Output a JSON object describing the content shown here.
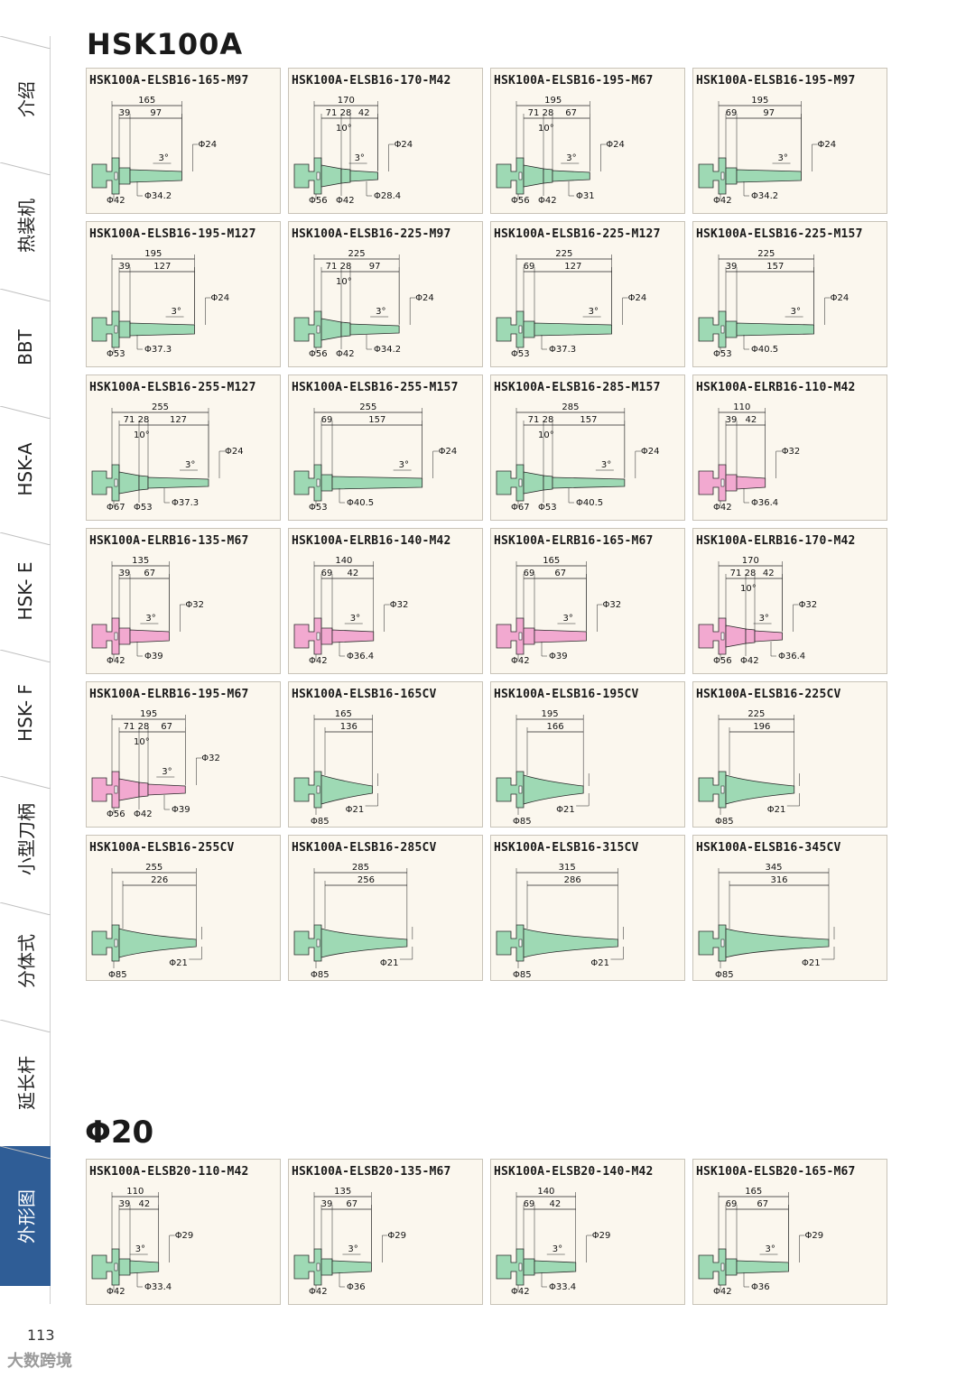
{
  "page_title": "HSK100A",
  "section_title": "Φ20",
  "page_number": "113",
  "watermark": "大数跨境",
  "colors": {
    "green": "#9ed9b4",
    "pink": "#f2a9d0",
    "active_tab": "#2f5d96"
  },
  "sidebar": {
    "items": [
      {
        "label": "介绍"
      },
      {
        "label": "热装机"
      },
      {
        "label": "BBT"
      },
      {
        "label": "HSK-A"
      },
      {
        "label": "HSK- E"
      },
      {
        "label": "HSK- F"
      },
      {
        "label": "小型刀柄"
      },
      {
        "label": "分体式"
      },
      {
        "label": "延长杆"
      },
      {
        "label": "外形图",
        "active": true
      }
    ]
  },
  "products": [
    {
      "name": "HSK100A-ELSB16-165-M97",
      "kind": "B2",
      "color": "green",
      "total": "165",
      "segs": [
        "39",
        "97"
      ],
      "angle": "3°",
      "tip": "Φ24",
      "flange": "Φ42",
      "nose": "Φ34.2"
    },
    {
      "name": "HSK100A-ELSB16-170-M42",
      "kind": "B3",
      "color": "green",
      "total": "170",
      "segs": [
        "71",
        "28",
        "42"
      ],
      "cone": "10°",
      "angle": "3°",
      "tip": "Φ24",
      "flange": "Φ56",
      "mid": "Φ42",
      "nose": "Φ28.4"
    },
    {
      "name": "HSK100A-ELSB16-195-M67",
      "kind": "B3",
      "color": "green",
      "total": "195",
      "segs": [
        "71",
        "28",
        "67"
      ],
      "cone": "10°",
      "angle": "3°",
      "tip": "Φ24",
      "flange": "Φ56",
      "mid": "Φ42",
      "nose": "Φ31"
    },
    {
      "name": "HSK100A-ELSB16-195-M97",
      "kind": "B2",
      "color": "green",
      "total": "195",
      "segs": [
        "69",
        "97"
      ],
      "angle": "3°",
      "tip": "Φ24",
      "flange": "Φ42",
      "nose": "Φ34.2"
    },
    {
      "name": "HSK100A-ELSB16-195-M127",
      "kind": "B2",
      "color": "green",
      "total": "195",
      "segs": [
        "39",
        "127"
      ],
      "angle": "3°",
      "tip": "Φ24",
      "flange": "Φ53",
      "nose": "Φ37.3"
    },
    {
      "name": "HSK100A-ELSB16-225-M97",
      "kind": "B3",
      "color": "green",
      "total": "225",
      "segs": [
        "71",
        "28",
        "97"
      ],
      "cone": "10°",
      "angle": "3°",
      "tip": "Φ24",
      "flange": "Φ56",
      "mid": "Φ42",
      "nose": "Φ34.2"
    },
    {
      "name": "HSK100A-ELSB16-225-M127",
      "kind": "B2",
      "color": "green",
      "total": "225",
      "segs": [
        "69",
        "127"
      ],
      "angle": "3°",
      "tip": "Φ24",
      "flange": "Φ53",
      "nose": "Φ37.3"
    },
    {
      "name": "HSK100A-ELSB16-225-M157",
      "kind": "B2",
      "color": "green",
      "total": "225",
      "segs": [
        "39",
        "157"
      ],
      "angle": "3°",
      "tip": "Φ24",
      "flange": "Φ53",
      "nose": "Φ40.5"
    },
    {
      "name": "HSK100A-ELSB16-255-M127",
      "kind": "B3",
      "color": "green",
      "total": "255",
      "segs": [
        "71",
        "28",
        "127"
      ],
      "cone": "10°",
      "angle": "3°",
      "tip": "Φ24",
      "flange": "Φ67",
      "mid": "Φ53",
      "nose": "Φ37.3"
    },
    {
      "name": "HSK100A-ELSB16-255-M157",
      "kind": "B2",
      "color": "green",
      "total": "255",
      "segs": [
        "69",
        "157"
      ],
      "angle": "3°",
      "tip": "Φ24",
      "flange": "Φ53",
      "nose": "Φ40.5"
    },
    {
      "name": "HSK100A-ELSB16-285-M157",
      "kind": "B3",
      "color": "green",
      "total": "285",
      "segs": [
        "71",
        "28",
        "157"
      ],
      "cone": "10°",
      "angle": "3°",
      "tip": "Φ24",
      "flange": "Φ67",
      "mid": "Φ53",
      "nose": "Φ40.5"
    },
    {
      "name": "HSK100A-ELRB16-110-M42",
      "kind": "B2",
      "color": "pink",
      "total": "110",
      "segs": [
        "39",
        "42"
      ],
      "angle": "",
      "tip": "Φ32",
      "flange": "Φ42",
      "nose": "Φ36.4"
    },
    {
      "name": "HSK100A-ELRB16-135-M67",
      "kind": "B2",
      "color": "pink",
      "total": "135",
      "segs": [
        "39",
        "67"
      ],
      "angle": "3°",
      "tip": "Φ32",
      "flange": "Φ42",
      "nose": "Φ39"
    },
    {
      "name": "HSK100A-ELRB16-140-M42",
      "kind": "B2",
      "color": "pink",
      "total": "140",
      "segs": [
        "69",
        "42"
      ],
      "angle": "3°",
      "tip": "Φ32",
      "flange": "Φ42",
      "nose": "Φ36.4"
    },
    {
      "name": "HSK100A-ELRB16-165-M67",
      "kind": "B2",
      "color": "pink",
      "total": "165",
      "segs": [
        "69",
        "67"
      ],
      "angle": "3°",
      "tip": "Φ32",
      "flange": "Φ42",
      "nose": "Φ39"
    },
    {
      "name": "HSK100A-ELRB16-170-M42",
      "kind": "B3",
      "color": "pink",
      "total": "170",
      "segs": [
        "71",
        "28",
        "42"
      ],
      "cone": "10°",
      "angle": "3°",
      "tip": "Φ32",
      "flange": "Φ56",
      "mid": "Φ42",
      "nose": "Φ36.4"
    },
    {
      "name": "HSK100A-ELRB16-195-M67",
      "kind": "B3",
      "color": "pink",
      "total": "195",
      "segs": [
        "71",
        "28",
        "67"
      ],
      "cone": "10°",
      "angle": "3°",
      "tip": "Φ32",
      "flange": "Φ56",
      "mid": "Φ42",
      "nose": "Φ39"
    },
    {
      "name": "HSK100A-ELSB16-165CV",
      "kind": "CV",
      "color": "green",
      "total": "165",
      "inner": "136",
      "flange": "Φ85",
      "tip": "Φ21"
    },
    {
      "name": "HSK100A-ELSB16-195CV",
      "kind": "CV",
      "color": "green",
      "total": "195",
      "inner": "166",
      "flange": "Φ85",
      "tip": "Φ21"
    },
    {
      "name": "HSK100A-ELSB16-225CV",
      "kind": "CV",
      "color": "green",
      "total": "225",
      "inner": "196",
      "flange": "Φ85",
      "tip": "Φ21"
    },
    {
      "name": "HSK100A-ELSB16-255CV",
      "kind": "CV",
      "color": "green",
      "total": "255",
      "inner": "226",
      "flange": "Φ85",
      "tip": "Φ21"
    },
    {
      "name": "HSK100A-ELSB16-285CV",
      "kind": "CV",
      "color": "green",
      "total": "285",
      "inner": "256",
      "flange": "Φ85",
      "tip": "Φ21"
    },
    {
      "name": "HSK100A-ELSB16-315CV",
      "kind": "CV",
      "color": "green",
      "total": "315",
      "inner": "286",
      "flange": "Φ85",
      "tip": "Φ21"
    },
    {
      "name": "HSK100A-ELSB16-345CV",
      "kind": "CV",
      "color": "green",
      "total": "345",
      "inner": "316",
      "flange": "Φ85",
      "tip": "Φ21"
    }
  ],
  "products_phi20": [
    {
      "name": "HSK100A-ELSB20-110-M42",
      "kind": "B2",
      "color": "green",
      "total": "110",
      "segs": [
        "39",
        "42"
      ],
      "angle": "3°",
      "tip": "Φ29",
      "flange": "Φ42",
      "nose": "Φ33.4"
    },
    {
      "name": "HSK100A-ELSB20-135-M67",
      "kind": "B2",
      "color": "green",
      "total": "135",
      "segs": [
        "39",
        "67"
      ],
      "angle": "3°",
      "tip": "Φ29",
      "flange": "Φ42",
      "nose": "Φ36"
    },
    {
      "name": "HSK100A-ELSB20-140-M42",
      "kind": "B2",
      "color": "green",
      "total": "140",
      "segs": [
        "69",
        "42"
      ],
      "angle": "3°",
      "tip": "Φ29",
      "flange": "Φ42",
      "nose": "Φ33.4"
    },
    {
      "name": "HSK100A-ELSB20-165-M67",
      "kind": "B2",
      "color": "green",
      "total": "165",
      "segs": [
        "69",
        "67"
      ],
      "angle": "3°",
      "tip": "Φ29",
      "flange": "Φ42",
      "nose": "Φ36"
    }
  ]
}
